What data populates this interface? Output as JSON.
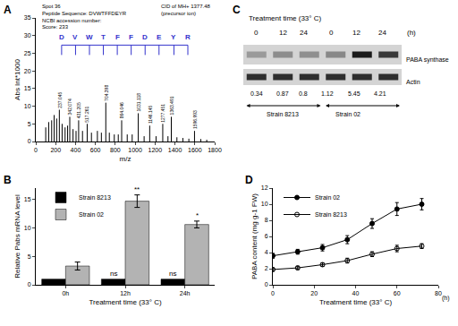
{
  "chart_data": [
    {
      "panel": "A",
      "type": "spectrum",
      "x_label": "m/z",
      "y_label": "Abs Int*1000",
      "header": [
        "Spot 36",
        "Peptide Sequence: DVWTFFDEYR",
        "NCBI accession number:",
        "Score: 233"
      ],
      "precursor": [
        "CID of MH+ 1377.48",
        "(precursor ion)"
      ],
      "x": [
        100,
        130,
        160,
        185,
        210,
        237.045,
        265,
        295,
        320,
        342.074,
        375,
        405,
        431.205,
        470,
        517.261,
        560,
        620,
        660,
        704.398,
        740,
        790,
        830,
        864.046,
        920,
        970,
        1031.118,
        1090,
        1146.145,
        1210,
        1277.451,
        1330,
        1363.491,
        1420,
        1480,
        1540,
        1596.993,
        1660,
        1720
      ],
      "values": [
        4,
        5.5,
        6,
        7.5,
        6.5,
        9,
        5,
        4,
        4.5,
        7,
        3.5,
        3,
        6,
        3,
        5,
        2.5,
        3,
        2.5,
        11,
        2.5,
        2,
        2,
        6,
        2,
        2,
        8,
        1.5,
        4.5,
        1.5,
        5,
        1.5,
        7,
        1.2,
        1,
        0.8,
        3,
        0.7,
        0.5
      ],
      "peak_labels": [
        null,
        null,
        null,
        null,
        null,
        237.045,
        null,
        null,
        null,
        342.074,
        null,
        null,
        431.205,
        null,
        517.261,
        null,
        null,
        null,
        704.398,
        null,
        null,
        null,
        864.046,
        null,
        null,
        1031.118,
        null,
        1146.145,
        null,
        1277.451,
        null,
        1363.491,
        null,
        null,
        null,
        1596.993,
        null,
        null
      ],
      "sequence": [
        {
          "label": "D",
          "x": 260
        },
        {
          "label": "V",
          "x": 400
        },
        {
          "label": "W",
          "x": 540
        },
        {
          "label": "T",
          "x": 680
        },
        {
          "label": "F",
          "x": 820
        },
        {
          "label": "F",
          "x": 960
        },
        {
          "label": "D",
          "x": 1100
        },
        {
          "label": "E",
          "x": 1240
        },
        {
          "label": "Y",
          "x": 1390
        },
        {
          "label": "R",
          "x": 1530
        }
      ],
      "color": "#000000",
      "xlim": [
        0,
        1800
      ],
      "xticks": [
        0,
        200,
        400,
        600,
        800,
        1000,
        1200,
        1400,
        1600,
        1800
      ],
      "ylim": [
        0,
        35
      ],
      "yticks": [
        0,
        5,
        10,
        15,
        20,
        25,
        30,
        35
      ]
    },
    {
      "panel": "B",
      "type": "bar",
      "x_label": "Treatment time (33° C)",
      "y_label": "Relative Pabs mRNA level",
      "categories": [
        "0h",
        "12h",
        "24h"
      ],
      "series": [
        {
          "name": "Strain 8213",
          "color": "#000000",
          "values": [
            1,
            1,
            1
          ]
        },
        {
          "name": "Strain 02",
          "color": "#b3b3b3",
          "values": [
            3.3,
            14.7,
            10.6
          ],
          "errors": [
            0.7,
            1.1,
            0.6
          ]
        }
      ],
      "annotations": [
        {
          "category": "12h",
          "series": "Strain 8213",
          "text": "ns"
        },
        {
          "category": "24h",
          "series": "Strain 8213",
          "text": "ns"
        },
        {
          "category": "12h",
          "series": "Strain 02",
          "text": "**"
        },
        {
          "category": "24h",
          "series": "Strain 02",
          "text": "*"
        }
      ],
      "ylim": [
        0,
        17
      ],
      "yticks": [
        0,
        5,
        10,
        15
      ],
      "legend": "top-left"
    },
    {
      "panel": "D",
      "type": "line",
      "x_label": "Treatment time (33° C)",
      "x_unit": "(h)",
      "y_label": "PABA content (mg g-1 FW)",
      "x": [
        0,
        12,
        24,
        36,
        48,
        60,
        72
      ],
      "series": [
        {
          "name": "Strain 02",
          "color": "#000000",
          "marker": "circle",
          "values": [
            3.6,
            4.1,
            4.6,
            5.6,
            7.6,
            9.4,
            10.0
          ],
          "errors": [
            0.3,
            0.3,
            0.4,
            0.5,
            0.6,
            0.8,
            0.7
          ]
        },
        {
          "name": "Strain 8213",
          "color": "#000000",
          "marker": "circle-open",
          "values": [
            1.9,
            2.1,
            2.5,
            3.0,
            3.8,
            4.5,
            4.8
          ],
          "errors": [
            0.2,
            0.2,
            0.2,
            0.3,
            0.3,
            0.4,
            0.3
          ]
        }
      ],
      "xlim": [
        0,
        80
      ],
      "xticks": [
        0,
        20,
        40,
        60,
        80
      ],
      "ylim": [
        0,
        12
      ],
      "yticks": [
        0,
        2,
        4,
        6,
        8,
        10,
        12
      ],
      "legend": "top-left"
    }
  ],
  "blot": {
    "panel": "C",
    "title": "Treatment time (33° C)",
    "unit": "(h)",
    "lanes": [
      "0",
      "12",
      "24",
      "0",
      "12",
      "24"
    ],
    "rows": [
      "PABA synthase",
      "Actin"
    ],
    "ratios": [
      0.34,
      0.87,
      0.8,
      1.12,
      5.45,
      4.21
    ],
    "groups": [
      {
        "label": "Strain 8213",
        "lanes": 3
      },
      {
        "label": "Strain 02",
        "lanes": 3
      }
    ]
  }
}
